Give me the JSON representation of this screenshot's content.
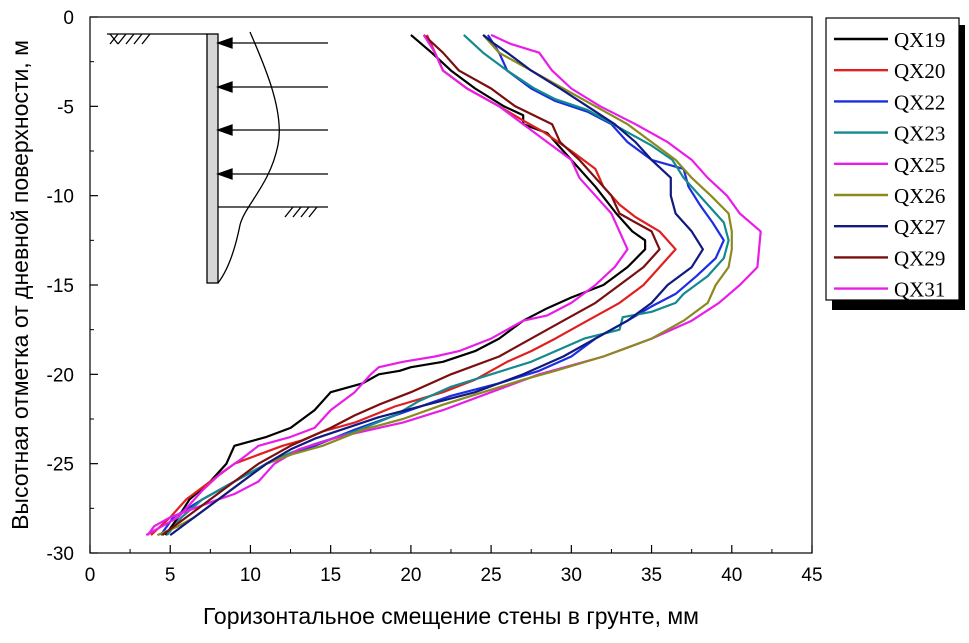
{
  "chart_data": {
    "type": "line",
    "xlabel": "Горизонтальное смещение стены в грунте, мм",
    "ylabel": "Высотная отметка от дневной поверхности, м",
    "xlim": [
      0,
      45
    ],
    "ylim": [
      -30,
      0
    ],
    "x_ticks": [
      "0",
      "5",
      "10",
      "15",
      "20",
      "25",
      "30",
      "35",
      "40",
      "45"
    ],
    "y_ticks": [
      "0",
      "-5",
      "-10",
      "-15",
      "-20",
      "-25",
      "-30"
    ],
    "legend_position": "outside-right",
    "grid": false,
    "series": [
      {
        "name": "QX19",
        "color": "#000000",
        "points": [
          [
            20.0,
            -1
          ],
          [
            21.3,
            -2
          ],
          [
            22.5,
            -3
          ],
          [
            24,
            -4
          ],
          [
            25.8,
            -5
          ],
          [
            27,
            -5.5
          ],
          [
            27,
            -6
          ],
          [
            28.5,
            -6.5
          ],
          [
            30,
            -8
          ],
          [
            31.5,
            -9.5
          ],
          [
            32.8,
            -11
          ],
          [
            33.8,
            -12
          ],
          [
            34.6,
            -12.5
          ],
          [
            34.6,
            -13
          ],
          [
            33.5,
            -14
          ],
          [
            32,
            -15
          ],
          [
            30,
            -15.7
          ],
          [
            28.5,
            -16.3
          ],
          [
            27,
            -17
          ],
          [
            25.5,
            -18
          ],
          [
            24,
            -18.7
          ],
          [
            22,
            -19.3
          ],
          [
            20,
            -19.6
          ],
          [
            19.3,
            -19.8
          ],
          [
            18,
            -20
          ],
          [
            17,
            -20.5
          ],
          [
            15,
            -21
          ],
          [
            14,
            -22
          ],
          [
            12.5,
            -23
          ],
          [
            11,
            -23.5
          ],
          [
            9,
            -24
          ],
          [
            8.5,
            -25
          ],
          [
            7.5,
            -26
          ],
          [
            6.2,
            -27
          ],
          [
            5.5,
            -28
          ],
          [
            4.7,
            -29
          ]
        ]
      },
      {
        "name": "QX20",
        "color": "#e02020",
        "points": [
          [
            21,
            -1
          ],
          [
            21.5,
            -2
          ],
          [
            22,
            -3
          ],
          [
            23.5,
            -4
          ],
          [
            25.5,
            -5
          ],
          [
            27,
            -5.8
          ],
          [
            28.2,
            -6.4
          ],
          [
            30,
            -7.5
          ],
          [
            31.5,
            -8.5
          ],
          [
            32,
            -9.5
          ],
          [
            33,
            -10.5
          ],
          [
            34,
            -11.2
          ],
          [
            35.5,
            -12
          ],
          [
            36.5,
            -13
          ],
          [
            35.5,
            -14
          ],
          [
            34.5,
            -15
          ],
          [
            33,
            -16
          ],
          [
            31,
            -17
          ],
          [
            29,
            -18
          ],
          [
            27.5,
            -18.7
          ],
          [
            26,
            -19.3
          ],
          [
            24,
            -20.3
          ],
          [
            22,
            -21
          ],
          [
            19,
            -21.8
          ],
          [
            16.5,
            -22.7
          ],
          [
            14.5,
            -23.2
          ],
          [
            13.2,
            -23.7
          ],
          [
            12,
            -24
          ],
          [
            10.5,
            -24.5
          ],
          [
            9,
            -25
          ],
          [
            7.5,
            -26
          ],
          [
            6,
            -27
          ],
          [
            5,
            -28
          ],
          [
            3.8,
            -29
          ]
        ]
      },
      {
        "name": "QX22",
        "color": "#1b2ee0",
        "points": [
          [
            24.8,
            -1
          ],
          [
            25.5,
            -2
          ],
          [
            26,
            -3
          ],
          [
            27.5,
            -4
          ],
          [
            29,
            -4.7
          ],
          [
            31,
            -5.3
          ],
          [
            32.5,
            -6
          ],
          [
            33.5,
            -7
          ],
          [
            35,
            -8
          ],
          [
            37,
            -8.5
          ],
          [
            37.3,
            -9.5
          ],
          [
            38,
            -10.5
          ],
          [
            38.8,
            -11.5
          ],
          [
            39.5,
            -12.5
          ],
          [
            39,
            -13.5
          ],
          [
            37.8,
            -14.5
          ],
          [
            36.5,
            -15.5
          ],
          [
            35,
            -16.2
          ],
          [
            33.5,
            -17
          ],
          [
            31.5,
            -18
          ],
          [
            30,
            -19
          ],
          [
            28,
            -19.8
          ],
          [
            25.5,
            -20.5
          ],
          [
            22.5,
            -21.2
          ],
          [
            19,
            -22.3
          ],
          [
            16.5,
            -23.1
          ],
          [
            14,
            -24
          ],
          [
            12.5,
            -24.5
          ],
          [
            11,
            -25
          ],
          [
            9,
            -26
          ],
          [
            7,
            -27
          ],
          [
            5.2,
            -28
          ],
          [
            4.4,
            -29
          ]
        ]
      },
      {
        "name": "QX23",
        "color": "#138a8e",
        "points": [
          [
            23.3,
            -1
          ],
          [
            24.5,
            -2
          ],
          [
            26,
            -3
          ],
          [
            27.7,
            -4
          ],
          [
            29,
            -4.6
          ],
          [
            31,
            -5.2
          ],
          [
            33,
            -6.2
          ],
          [
            35,
            -7.2
          ],
          [
            36.3,
            -8
          ],
          [
            37,
            -9
          ],
          [
            38.5,
            -10.5
          ],
          [
            39.5,
            -11.5
          ],
          [
            39.8,
            -12.5
          ],
          [
            39.5,
            -13.5
          ],
          [
            38.5,
            -14.5
          ],
          [
            37,
            -15.5
          ],
          [
            36.5,
            -16
          ],
          [
            35,
            -16.5
          ],
          [
            33.2,
            -16.8
          ],
          [
            33,
            -17.5
          ],
          [
            30.8,
            -18
          ],
          [
            27.5,
            -19.3
          ],
          [
            25,
            -20
          ],
          [
            22.5,
            -20.7
          ],
          [
            20.5,
            -21.5
          ],
          [
            19,
            -22.3
          ],
          [
            16.5,
            -23.2
          ],
          [
            14,
            -23.9
          ],
          [
            12.5,
            -24.4
          ],
          [
            11,
            -25
          ],
          [
            9,
            -26
          ],
          [
            7,
            -27
          ],
          [
            5.7,
            -28
          ],
          [
            4.8,
            -29
          ]
        ]
      },
      {
        "name": "QX25",
        "color": "#e81ee8",
        "points": [
          [
            25,
            -1
          ],
          [
            26.2,
            -1.5
          ],
          [
            28,
            -2
          ],
          [
            28.8,
            -3
          ],
          [
            30,
            -4
          ],
          [
            31.8,
            -5
          ],
          [
            34,
            -6
          ],
          [
            36,
            -7
          ],
          [
            37.5,
            -8
          ],
          [
            38.5,
            -9
          ],
          [
            39.7,
            -10
          ],
          [
            40.5,
            -11
          ],
          [
            41.8,
            -12
          ],
          [
            41.6,
            -14
          ],
          [
            40.5,
            -15
          ],
          [
            39.2,
            -16
          ],
          [
            37.5,
            -17
          ],
          [
            35,
            -18
          ],
          [
            32,
            -19
          ],
          [
            30,
            -19.5
          ],
          [
            28,
            -20
          ],
          [
            25,
            -21
          ],
          [
            22,
            -22
          ],
          [
            19.5,
            -22.7
          ],
          [
            18,
            -23
          ],
          [
            15.5,
            -23.5
          ],
          [
            13,
            -24.2
          ],
          [
            11.5,
            -25
          ],
          [
            10.5,
            -26
          ],
          [
            9,
            -26.7
          ],
          [
            8,
            -27
          ],
          [
            6.5,
            -27.5
          ],
          [
            5,
            -28
          ],
          [
            4,
            -28.5
          ],
          [
            3.6,
            -29
          ]
        ]
      },
      {
        "name": "QX26",
        "color": "#8a8a1e",
        "points": [
          [
            24.5,
            -1
          ],
          [
            25.5,
            -2
          ],
          [
            27.5,
            -3
          ],
          [
            29.5,
            -4
          ],
          [
            31.5,
            -5
          ],
          [
            33.5,
            -6
          ],
          [
            35,
            -7
          ],
          [
            36.5,
            -8
          ],
          [
            37.5,
            -9
          ],
          [
            38.7,
            -10
          ],
          [
            39.8,
            -11
          ],
          [
            40,
            -12
          ],
          [
            40,
            -13
          ],
          [
            39.8,
            -14
          ],
          [
            39,
            -15
          ],
          [
            38.5,
            -16
          ],
          [
            37,
            -17
          ],
          [
            35,
            -18
          ],
          [
            32,
            -19
          ],
          [
            29,
            -19.8
          ],
          [
            27,
            -20.3
          ],
          [
            24.5,
            -21
          ],
          [
            22,
            -21.7
          ],
          [
            19.5,
            -22.5
          ],
          [
            17,
            -23.1
          ],
          [
            14.5,
            -24
          ],
          [
            12.5,
            -24.5
          ],
          [
            11,
            -25
          ],
          [
            9.5,
            -26
          ],
          [
            8,
            -27
          ],
          [
            6.5,
            -28
          ],
          [
            5.5,
            -28.5
          ],
          [
            4.2,
            -29
          ]
        ]
      },
      {
        "name": "QX27",
        "color": "#101a80",
        "points": [
          [
            24.5,
            -1
          ],
          [
            25.2,
            -1.5
          ],
          [
            26,
            -2
          ],
          [
            27.5,
            -3
          ],
          [
            29.3,
            -4
          ],
          [
            31,
            -5
          ],
          [
            32.7,
            -6
          ],
          [
            34,
            -7
          ],
          [
            35,
            -8
          ],
          [
            36.2,
            -9
          ],
          [
            36.2,
            -10
          ],
          [
            36.5,
            -11
          ],
          [
            37.5,
            -12
          ],
          [
            38.2,
            -13
          ],
          [
            37.5,
            -14
          ],
          [
            36,
            -15
          ],
          [
            35,
            -16
          ],
          [
            33.5,
            -17
          ],
          [
            31.5,
            -18
          ],
          [
            29.5,
            -19
          ],
          [
            27,
            -20
          ],
          [
            24,
            -21
          ],
          [
            21,
            -21.7
          ],
          [
            18,
            -22.4
          ],
          [
            16,
            -23
          ],
          [
            14,
            -23.6
          ],
          [
            12.5,
            -24.2
          ],
          [
            11,
            -25
          ],
          [
            9.5,
            -26
          ],
          [
            8,
            -27
          ],
          [
            6.5,
            -28
          ],
          [
            5,
            -29
          ]
        ]
      },
      {
        "name": "QX29",
        "color": "#7a0f0f",
        "points": [
          [
            20.8,
            -1
          ],
          [
            22,
            -2
          ],
          [
            23,
            -3
          ],
          [
            25,
            -4
          ],
          [
            26.5,
            -5
          ],
          [
            28.8,
            -6
          ],
          [
            29.3,
            -7
          ],
          [
            30.5,
            -8
          ],
          [
            31.5,
            -9
          ],
          [
            32.5,
            -10
          ],
          [
            33,
            -11
          ],
          [
            34,
            -11.5
          ],
          [
            35,
            -12
          ],
          [
            35.5,
            -13
          ],
          [
            34.5,
            -14
          ],
          [
            33,
            -15
          ],
          [
            31.5,
            -16
          ],
          [
            29.5,
            -17
          ],
          [
            27.5,
            -18
          ],
          [
            25.5,
            -19
          ],
          [
            22.5,
            -20
          ],
          [
            20,
            -21
          ],
          [
            18,
            -21.7
          ],
          [
            16.5,
            -22.3
          ],
          [
            15,
            -23
          ],
          [
            12.5,
            -24
          ],
          [
            10.5,
            -25
          ],
          [
            9,
            -26
          ],
          [
            7.5,
            -27
          ],
          [
            6,
            -28
          ],
          [
            4.5,
            -29
          ]
        ]
      },
      {
        "name": "QX31",
        "color": "#e81ee8",
        "points": [
          [
            20.8,
            -1
          ],
          [
            21.5,
            -2
          ],
          [
            22,
            -3
          ],
          [
            23.5,
            -4
          ],
          [
            25.5,
            -5
          ],
          [
            27,
            -6
          ],
          [
            28.5,
            -7
          ],
          [
            30,
            -8
          ],
          [
            30.5,
            -9
          ],
          [
            31.5,
            -10
          ],
          [
            32.5,
            -11
          ],
          [
            33,
            -12
          ],
          [
            33.5,
            -13
          ],
          [
            32.7,
            -14
          ],
          [
            31.5,
            -15
          ],
          [
            30,
            -16
          ],
          [
            28.5,
            -16.7
          ],
          [
            27,
            -17
          ],
          [
            25,
            -18
          ],
          [
            23,
            -18.7
          ],
          [
            21.5,
            -19
          ],
          [
            19.5,
            -19.3
          ],
          [
            18,
            -19.6
          ],
          [
            17.5,
            -20
          ],
          [
            16.5,
            -21
          ],
          [
            15,
            -22
          ],
          [
            14,
            -23
          ],
          [
            12.5,
            -23.5
          ],
          [
            10.5,
            -24
          ],
          [
            9.5,
            -24.7
          ],
          [
            8.2,
            -25.5
          ],
          [
            7,
            -26.5
          ],
          [
            6,
            -27.5
          ],
          [
            5.5,
            -28
          ],
          [
            4.5,
            -28.5
          ],
          [
            3.5,
            -29
          ]
        ]
      }
    ]
  }
}
